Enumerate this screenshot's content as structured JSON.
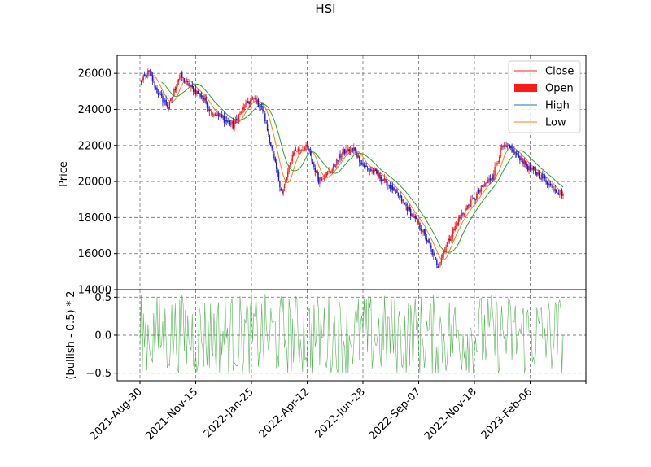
{
  "chart_data": [
    {
      "type": "candlestick",
      "title": "HSI",
      "ylabel": "Price",
      "xlabel": "",
      "ylim": [
        14000,
        27000
      ],
      "yticks": [
        14000,
        16000,
        18000,
        20000,
        22000,
        24000,
        26000
      ],
      "xticks": [
        "2021-Aug-30",
        "2021-Nov-15",
        "2022-Jan-25",
        "2022-Apr-12",
        "2022-Jun-28",
        "2022-Sep-07",
        "2022-Nov-18",
        "2023-Feb-06"
      ],
      "grid": true,
      "legend_position": "upper right",
      "legend": [
        {
          "label": "Close",
          "color": "#ff2020",
          "style": "line"
        },
        {
          "label": "Open",
          "color": "#ff1a1a",
          "style": "patch"
        },
        {
          "label": "High",
          "color": "#1f77b4",
          "style": "line"
        },
        {
          "label": "Low",
          "color": "#ff7f0e",
          "style": "line"
        }
      ],
      "up_color": "#ff1a1a",
      "down_color": "#1a1adf",
      "ma_colors": [
        "#ff7f0e",
        "#2ca02c"
      ],
      "close_anchors": {
        "x_trading_day": [
          0,
          8,
          15,
          25,
          35,
          45,
          55,
          62,
          70,
          82,
          92,
          100,
          108,
          118,
          125,
          135,
          147,
          157,
          168,
          178,
          188,
          196,
          206,
          214,
          222,
          232,
          248,
          256,
          262,
          270,
          282,
          292,
          300,
          310,
          318,
          326,
          336,
          342,
          350,
          356,
          364,
          372
        ],
        "y_close": [
          25500,
          26100,
          25000,
          24100,
          25900,
          25200,
          24700,
          23900,
          23600,
          23100,
          24200,
          24600,
          24000,
          21200,
          19300,
          21700,
          21900,
          20100,
          20600,
          21600,
          21800,
          20900,
          20500,
          20100,
          19600,
          18800,
          17300,
          16200,
          15300,
          16600,
          18100,
          18900,
          19600,
          20300,
          21900,
          21800,
          21200,
          20700,
          20400,
          20100,
          19600,
          19300
        ]
      }
    },
    {
      "type": "line",
      "ylabel": "(bullish - 0.5) * 2",
      "ylim": [
        -0.6,
        0.6
      ],
      "yticks": [
        -0.5,
        0.0,
        0.5
      ],
      "ytick_labels": [
        "−0.5",
        "0.0",
        "0.5"
      ],
      "series_color": "#2ca02c",
      "value_range": [
        -0.5,
        0.6
      ],
      "grid": true
    }
  ]
}
